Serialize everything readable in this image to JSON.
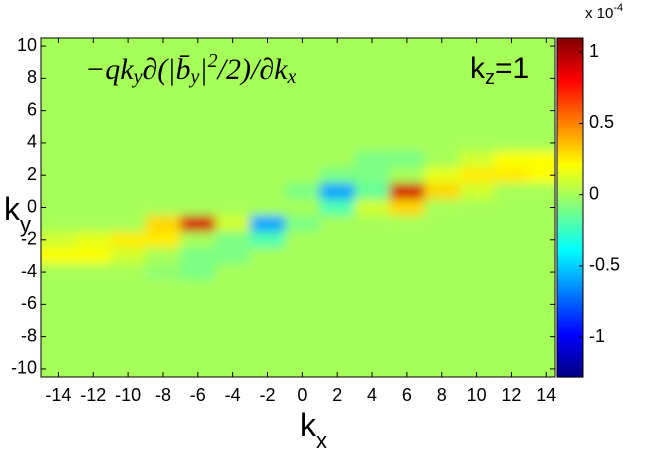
{
  "chart_data": {
    "type": "heatmap",
    "title": [
      "−qk",
      "y",
      "∂(|b̄",
      "y",
      "|",
      "2",
      "/2)/∂k",
      "x"
    ],
    "annotation": [
      "k",
      "z",
      "=1"
    ],
    "xlabel": [
      "k",
      "x"
    ],
    "ylabel": [
      "k",
      "y"
    ],
    "colorbar_multiplier": [
      "x 10",
      "-4"
    ],
    "colormap": "jet",
    "x": [
      -14,
      -12,
      -10,
      -8,
      -6,
      -4,
      -2,
      0,
      2,
      4,
      6,
      8,
      10,
      12,
      14
    ],
    "y": [
      10,
      9,
      8,
      7,
      6,
      5,
      4,
      3,
      2,
      1,
      0,
      -1,
      -2,
      -3,
      -4,
      -5,
      -6,
      -7,
      -8,
      -9,
      -10
    ],
    "z": [
      [
        0,
        0,
        0,
        0,
        0,
        0,
        0,
        0,
        0,
        0,
        0,
        0,
        0,
        0,
        0
      ],
      [
        0,
        0,
        0,
        0,
        0,
        0,
        0,
        0,
        0,
        0,
        0,
        0,
        0,
        0,
        0
      ],
      [
        0,
        0,
        0,
        0,
        0,
        0,
        0,
        0,
        0,
        0,
        0,
        0,
        0,
        0,
        0
      ],
      [
        0,
        0,
        0,
        0,
        0,
        0,
        0,
        0,
        0,
        0,
        0,
        0,
        0,
        0,
        0
      ],
      [
        0,
        0,
        0,
        0,
        0,
        0,
        0,
        0,
        0,
        0,
        0,
        0,
        0,
        0,
        0
      ],
      [
        0,
        0,
        0,
        0,
        0,
        0,
        0,
        0,
        0,
        0,
        0,
        0,
        0,
        0,
        0
      ],
      [
        0,
        0,
        0,
        0,
        0,
        0,
        0,
        0,
        0,
        0,
        0,
        0,
        0,
        0,
        0
      ],
      [
        0,
        0,
        0,
        0,
        0,
        0,
        0,
        0,
        0,
        -0.1,
        -0.1,
        0,
        0.1,
        0.2,
        0.2
      ],
      [
        0,
        0,
        0,
        0,
        0,
        0,
        0,
        0,
        -0.1,
        -0.1,
        0,
        0.15,
        0.25,
        0.25,
        0.2
      ],
      [
        0,
        0,
        0,
        0,
        0,
        0,
        0,
        -0.1,
        -0.6,
        -0.15,
        0.9,
        0.3,
        0.1,
        0,
        0
      ],
      [
        0,
        0,
        0,
        0,
        0,
        0,
        0,
        0,
        -0.2,
        0.1,
        0.3,
        0,
        0,
        0,
        0
      ],
      [
        0,
        0,
        0,
        0.3,
        0.9,
        0.1,
        -0.6,
        -0.1,
        0,
        0,
        0,
        0,
        0,
        0,
        0
      ],
      [
        0.1,
        0.15,
        0.25,
        0.25,
        0,
        -0.1,
        -0.2,
        0,
        0,
        0,
        0,
        0,
        0,
        0,
        0
      ],
      [
        0.2,
        0.2,
        0.1,
        0,
        -0.1,
        -0.1,
        0,
        0,
        0,
        0,
        0,
        0,
        0,
        0,
        0
      ],
      [
        0,
        0,
        0,
        -0.05,
        -0.1,
        0,
        0,
        0,
        0,
        0,
        0,
        0,
        0,
        0,
        0
      ],
      [
        0,
        0,
        0,
        0,
        0,
        0,
        0,
        0,
        0,
        0,
        0,
        0,
        0,
        0,
        0
      ],
      [
        0,
        0,
        0,
        0,
        0,
        0,
        0,
        0,
        0,
        0,
        0,
        0,
        0,
        0,
        0
      ],
      [
        0,
        0,
        0,
        0,
        0,
        0,
        0,
        0,
        0,
        0,
        0,
        0,
        0,
        0,
        0
      ],
      [
        0,
        0,
        0,
        0,
        0,
        0,
        0,
        0,
        0,
        0,
        0,
        0,
        0,
        0,
        0
      ],
      [
        0,
        0,
        0,
        0,
        0,
        0,
        0,
        0,
        0,
        0,
        0,
        0,
        0,
        0,
        0
      ],
      [
        0,
        0,
        0,
        0,
        0,
        0,
        0,
        0,
        0,
        0,
        0,
        0,
        0,
        0,
        0
      ]
    ],
    "xlim": [
      -15,
      14.5
    ],
    "ylim": [
      -10.5,
      10.5
    ],
    "clim": [
      -1.28,
      1.1
    ],
    "xticks": [
      -14,
      -12,
      -10,
      -8,
      -6,
      -4,
      -2,
      0,
      2,
      4,
      6,
      8,
      10,
      12,
      14
    ],
    "yticks": [
      -10,
      -8,
      -6,
      -4,
      -2,
      0,
      2,
      4,
      6,
      8,
      10
    ],
    "cticks": [
      -1,
      -0.5,
      0,
      0.5,
      1
    ]
  }
}
